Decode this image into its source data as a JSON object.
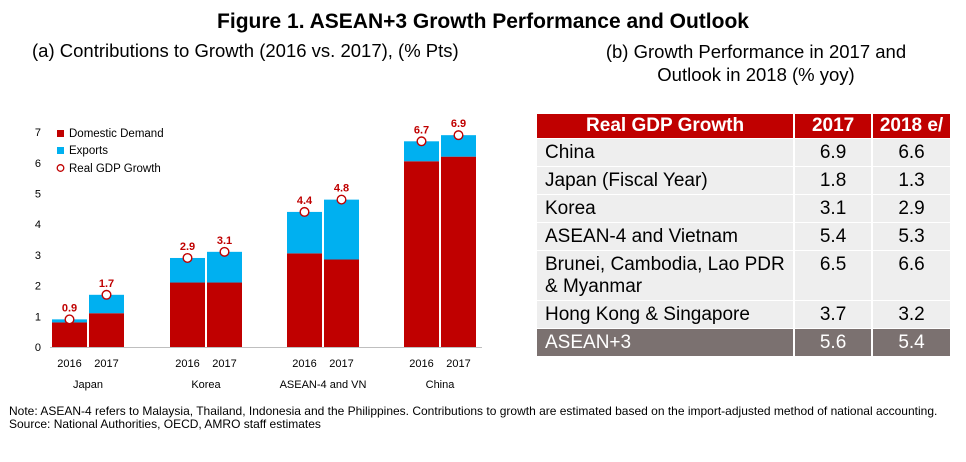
{
  "figure_title": "Figure 1. ASEAN+3 Growth Performance and Outlook",
  "panel_a_title": "(a) Contributions to Growth (2016 vs. 2017), (% Pts)",
  "panel_b_title_line1": "(b) Growth Performance in 2017 and",
  "panel_b_title_line2": "Outlook in 2018 (% yoy)",
  "colors": {
    "domestic": "#c00000",
    "exports": "#00b0f0",
    "table_header": "#c00000",
    "table_row": "#eeeeee",
    "table_total": "#7b7170"
  },
  "chart_data": {
    "type": "bar",
    "stacked": true,
    "y_ticks": [
      "0",
      "1",
      "2",
      "3",
      "4",
      "5",
      "6",
      "7"
    ],
    "ylim": [
      0,
      7.5
    ],
    "legend": [
      "Domestic Demand",
      "Exports",
      "Real GDP Growth"
    ],
    "legend_position": "top-left",
    "groups": [
      {
        "name": "Japan",
        "years": [
          "2016",
          "2017"
        ],
        "domestic": [
          0.8,
          1.1
        ],
        "exports": [
          0.1,
          0.6
        ],
        "gdp": [
          0.9,
          1.7
        ],
        "gdp_labels": [
          "0.9",
          "1.7"
        ]
      },
      {
        "name": "Korea",
        "years": [
          "2016",
          "2017"
        ],
        "domestic": [
          2.1,
          2.1
        ],
        "exports": [
          0.8,
          1.0
        ],
        "gdp": [
          2.9,
          3.1
        ],
        "gdp_labels": [
          "2.9",
          "3.1"
        ]
      },
      {
        "name": "ASEAN-4 and VN",
        "years": [
          "2016",
          "2017"
        ],
        "domestic": [
          3.05,
          2.85
        ],
        "exports": [
          1.35,
          1.95
        ],
        "gdp": [
          4.4,
          4.8
        ],
        "gdp_labels": [
          "4.4",
          "4.8"
        ]
      },
      {
        "name": "China",
        "years": [
          "2016",
          "2017"
        ],
        "domestic": [
          6.05,
          6.2
        ],
        "exports": [
          0.65,
          0.7
        ],
        "gdp": [
          6.7,
          6.9
        ],
        "gdp_labels": [
          "6.7",
          "6.9"
        ]
      }
    ]
  },
  "table": {
    "headers": [
      "Real GDP Growth",
      "2017",
      "2018 e/"
    ],
    "rows": [
      {
        "name": "China",
        "v2017": "6.9",
        "v2018": "6.6"
      },
      {
        "name": "Japan (Fiscal Year)",
        "v2017": "1.8",
        "v2018": "1.3"
      },
      {
        "name": "Korea",
        "v2017": "3.1",
        "v2018": "2.9"
      },
      {
        "name": "ASEAN-4 and Vietnam",
        "v2017": "5.4",
        "v2018": "5.3"
      },
      {
        "name": "Brunei, Cambodia, Lao PDR & Myanmar",
        "v2017": "6.5",
        "v2018": "6.6"
      },
      {
        "name": "Hong Kong & Singapore",
        "v2017": "3.7",
        "v2018": "3.2"
      },
      {
        "name": "ASEAN+3",
        "v2017": "5.6",
        "v2018": "5.4"
      }
    ]
  },
  "note": "Note: ASEAN-4 refers to Malaysia, Thailand, Indonesia and the Philippines. Contributions to growth are estimated based on the import-adjusted method of national accounting.",
  "source": "Source: National Authorities, OECD, AMRO staff estimates"
}
